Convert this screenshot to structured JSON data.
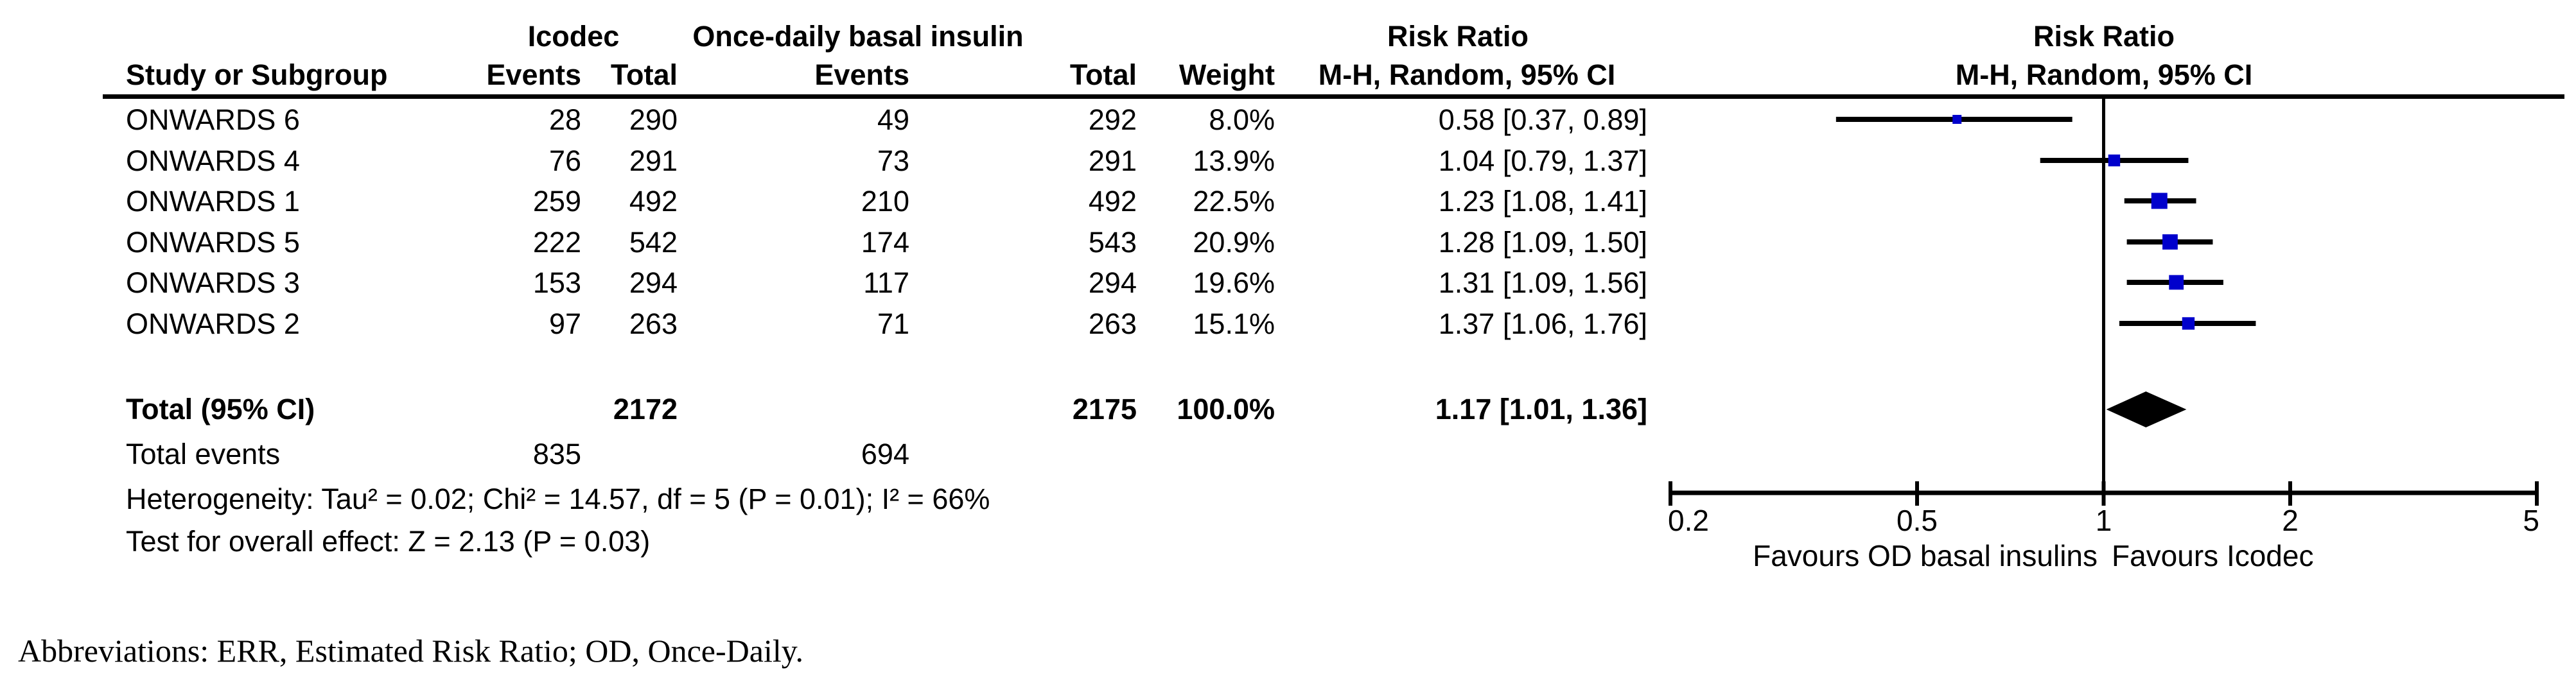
{
  "figure": {
    "columns": {
      "study": "Study or Subgroup",
      "group1": "Icodec",
      "group2": "Once-daily basal insulin",
      "events": "Events",
      "total": "Total",
      "weight": "Weight",
      "effect_title": "Risk Ratio",
      "effect_method": "M-H, Random, 95% CI"
    },
    "footer": "Abbreviations: ERR, Estimated Risk Ratio; OD, Once-Daily."
  },
  "chart_data": {
    "type": "forest",
    "effect_measure": "Risk Ratio",
    "model": "M-H, Random, 95% CI",
    "x_axis": {
      "scale": "log",
      "min": 0.2,
      "max": 5,
      "ticks": [
        "0.2",
        "0.5",
        "1",
        "2",
        "5"
      ],
      "label_left": "Favours OD basal insulins",
      "label_right": "Favours Icodec"
    },
    "marker_color": "#0000CC",
    "studies": [
      {
        "name": "ONWARDS 6",
        "icodec_events": 28,
        "icodec_total": 290,
        "od_events": 49,
        "od_total": 292,
        "weight": "8.0%",
        "weight_pct": 8.0,
        "rr": 0.58,
        "ci_low": 0.37,
        "ci_high": 0.89,
        "rr_ci_label": "0.58 [0.37, 0.89]"
      },
      {
        "name": "ONWARDS 4",
        "icodec_events": 76,
        "icodec_total": 291,
        "od_events": 73,
        "od_total": 291,
        "weight": "13.9%",
        "weight_pct": 13.9,
        "rr": 1.04,
        "ci_low": 0.79,
        "ci_high": 1.37,
        "rr_ci_label": "1.04 [0.79, 1.37]"
      },
      {
        "name": "ONWARDS 1",
        "icodec_events": 259,
        "icodec_total": 492,
        "od_events": 210,
        "od_total": 492,
        "weight": "22.5%",
        "weight_pct": 22.5,
        "rr": 1.23,
        "ci_low": 1.08,
        "ci_high": 1.41,
        "rr_ci_label": "1.23 [1.08, 1.41]"
      },
      {
        "name": "ONWARDS 5",
        "icodec_events": 222,
        "icodec_total": 542,
        "od_events": 174,
        "od_total": 543,
        "weight": "20.9%",
        "weight_pct": 20.9,
        "rr": 1.28,
        "ci_low": 1.09,
        "ci_high": 1.5,
        "rr_ci_label": "1.28 [1.09, 1.50]"
      },
      {
        "name": "ONWARDS 3",
        "icodec_events": 153,
        "icodec_total": 294,
        "od_events": 117,
        "od_total": 294,
        "weight": "19.6%",
        "weight_pct": 19.6,
        "rr": 1.31,
        "ci_low": 1.09,
        "ci_high": 1.56,
        "rr_ci_label": "1.31 [1.09, 1.56]"
      },
      {
        "name": "ONWARDS 2",
        "icodec_events": 97,
        "icodec_total": 263,
        "od_events": 71,
        "od_total": 263,
        "weight": "15.1%",
        "weight_pct": 15.1,
        "rr": 1.37,
        "ci_low": 1.06,
        "ci_high": 1.76,
        "rr_ci_label": "1.37 [1.06, 1.76]"
      }
    ],
    "total": {
      "label": "Total (95% CI)",
      "icodec_total": 2172,
      "od_total": 2175,
      "weight": "100.0%",
      "rr": 1.17,
      "ci_low": 1.01,
      "ci_high": 1.36,
      "rr_ci_label": "1.17 [1.01, 1.36]"
    },
    "total_events": {
      "label": "Total events",
      "icodec": 835,
      "od": 694
    },
    "heterogeneity": "Heterogeneity: Tau² = 0.02; Chi² = 14.57, df = 5 (P = 0.01); I² = 66%",
    "overall_effect": "Test for overall effect: Z = 2.13 (P = 0.03)"
  }
}
